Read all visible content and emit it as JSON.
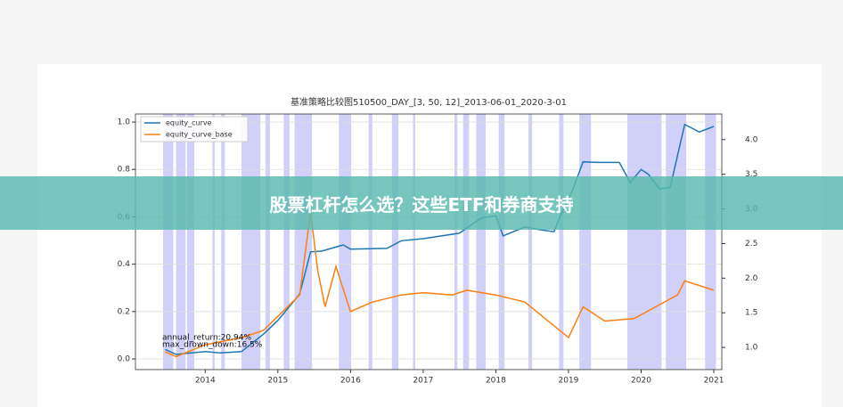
{
  "banner": {
    "text": "股票杠杆怎么选？这些ETF和券商支持"
  },
  "chart_data": {
    "type": "line",
    "title": "基准策略比较图510500_DAY_[3, 50, 12]_2013-06-01_2020-3-01",
    "xlim": [
      2013.04,
      2021.11
    ],
    "xticks": [
      2014,
      2015,
      2016,
      2017,
      2018,
      2019,
      2020,
      2021
    ],
    "ylim": [
      -0.045,
      1.034
    ],
    "yticks": [
      {
        "value": 0,
        "label": "0.0"
      },
      0.2,
      0.4,
      0.6,
      0.8,
      {
        "value": 1,
        "label": "1.0"
      }
    ],
    "y2lim": [
      0.68,
      4.37
    ],
    "y2ticks": [
      {
        "value": 1,
        "label": "1.0"
      },
      1.5,
      {
        "value": 2,
        "label": "2.0"
      },
      2.5,
      {
        "value": 3,
        "label": "3.0"
      },
      3.5,
      {
        "value": 4,
        "label": "4.0"
      }
    ],
    "grid": true,
    "legend": "upper left",
    "annotations": [
      "annual_return:20.94%",
      "max_drown_down:16.5%"
    ],
    "spans_color": "#c8c8f8",
    "spans": [
      [
        2013.42,
        2013.56
      ],
      [
        2013.6,
        2013.73
      ],
      [
        2013.75,
        2013.85
      ],
      [
        2014.1,
        2014.13
      ],
      [
        2014.22,
        2014.27
      ],
      [
        2014.5,
        2014.76
      ],
      [
        2014.83,
        2014.89
      ],
      [
        2015.08,
        2015.16
      ],
      [
        2015.23,
        2015.47
      ],
      [
        2015.84,
        2016.01
      ],
      [
        2016.25,
        2016.3
      ],
      [
        2016.57,
        2016.66
      ],
      [
        2016.86,
        2016.89
      ],
      [
        2017.43,
        2017.47
      ],
      [
        2017.55,
        2017.63
      ],
      [
        2017.73,
        2017.86
      ],
      [
        2018.04,
        2018.12
      ],
      [
        2018.45,
        2018.5
      ],
      [
        2018.87,
        2018.93
      ],
      [
        2019.15,
        2019.31
      ],
      [
        2019.81,
        2020.28
      ],
      [
        2020.34,
        2020.62
      ],
      [
        2020.88,
        2021.03
      ]
    ],
    "series": [
      {
        "name": "equity_curve",
        "color": "#1f77b4",
        "axis": "y2",
        "x": [
          2013.45,
          2013.6,
          2014.0,
          2014.2,
          2014.5,
          2014.8,
          2015.0,
          2015.3,
          2015.45,
          2015.6,
          2015.9,
          2016.0,
          2016.5,
          2016.7,
          2017.0,
          2017.5,
          2017.8,
          2018.0,
          2018.1,
          2018.4,
          2018.6,
          2018.8,
          2018.9,
          2019.05,
          2019.2,
          2019.4,
          2019.7,
          2019.85,
          2020.0,
          2020.1,
          2020.25,
          2020.4,
          2020.5,
          2020.6,
          2020.8,
          2021.0
        ],
        "values": [
          0.97,
          0.9,
          0.94,
          0.92,
          0.94,
          1.19,
          1.39,
          1.77,
          2.38,
          2.39,
          2.48,
          2.42,
          2.43,
          2.54,
          2.57,
          2.65,
          2.87,
          2.9,
          2.61,
          2.74,
          2.7,
          2.67,
          2.93,
          3.25,
          3.68,
          3.67,
          3.67,
          3.38,
          3.57,
          3.5,
          3.29,
          3.31,
          3.77,
          4.22,
          4.11,
          4.19
        ]
      },
      {
        "name": "equity_curve_base",
        "color": "#ff7f0e",
        "x": [
          2013.45,
          2013.6,
          2014.0,
          2014.5,
          2014.8,
          2015.0,
          2015.3,
          2015.45,
          2015.55,
          2015.65,
          2015.8,
          2016.0,
          2016.3,
          2016.7,
          2017.0,
          2017.4,
          2017.6,
          2018.0,
          2018.4,
          2018.8,
          2019.0,
          2019.2,
          2019.5,
          2019.9,
          2020.2,
          2020.5,
          2020.6,
          2021.0
        ],
        "values": [
          0.03,
          0.01,
          0.06,
          0.09,
          0.12,
          0.18,
          0.27,
          0.62,
          0.37,
          0.22,
          0.39,
          0.2,
          0.24,
          0.27,
          0.28,
          0.27,
          0.29,
          0.27,
          0.24,
          0.14,
          0.09,
          0.22,
          0.16,
          0.17,
          0.22,
          0.27,
          0.33,
          0.29
        ]
      }
    ]
  }
}
